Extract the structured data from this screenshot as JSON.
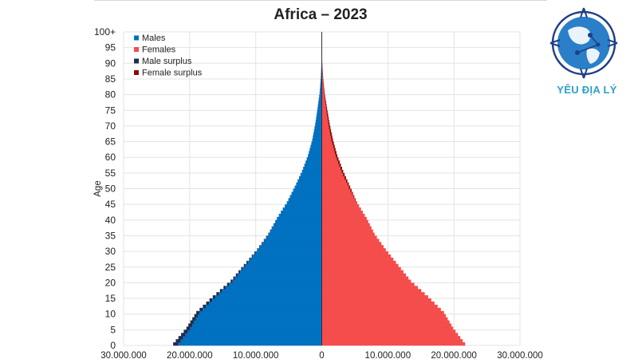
{
  "chart_data": {
    "type": "bar",
    "orientation": "horizontal",
    "title": "Africa – 2023",
    "ylabel": "Age",
    "xlabel": "",
    "x_range": [
      -30000000,
      30000000
    ],
    "x_ticks": [
      "30.000.000",
      "20.000.000",
      "10.000.000",
      "0",
      "10.000.000",
      "20.000.000",
      "30.000.000"
    ],
    "y_ticks": [
      "0",
      "5",
      "10",
      "15",
      "20",
      "25",
      "30",
      "35",
      "40",
      "45",
      "50",
      "55",
      "60",
      "65",
      "70",
      "75",
      "80",
      "85",
      "90",
      "95",
      "100+"
    ],
    "age_groups": [
      "0",
      "5",
      "10",
      "15",
      "20",
      "25",
      "30",
      "35",
      "40",
      "45",
      "50",
      "55",
      "60",
      "65",
      "70",
      "75",
      "80",
      "85",
      "90",
      "95",
      "100+"
    ],
    "legend_position": "top-left",
    "grid": true,
    "series": [
      {
        "name": "Males",
        "color": "#0070c0",
        "values": [
          22500000,
          20500000,
          19000000,
          16500000,
          13800000,
          11800000,
          9800000,
          8100000,
          6800000,
          5300000,
          4100000,
          3000000,
          2100000,
          1450000,
          1000000,
          650000,
          330000,
          150000,
          50000,
          10000,
          2000
        ]
      },
      {
        "name": "Females",
        "color": "#f54c4c",
        "values": [
          21700000,
          19900000,
          18500000,
          16100000,
          13500000,
          11600000,
          9700000,
          8000000,
          6800000,
          5350000,
          4300000,
          3250000,
          2350000,
          1700000,
          1200000,
          800000,
          430000,
          200000,
          70000,
          15000,
          3000
        ]
      },
      {
        "name": "Male surplus",
        "color": "#1f2e4d"
      },
      {
        "name": "Female surplus",
        "color": "#8b0a0a"
      }
    ]
  },
  "logo": {
    "text": "YÊU ĐỊA LÝ"
  }
}
